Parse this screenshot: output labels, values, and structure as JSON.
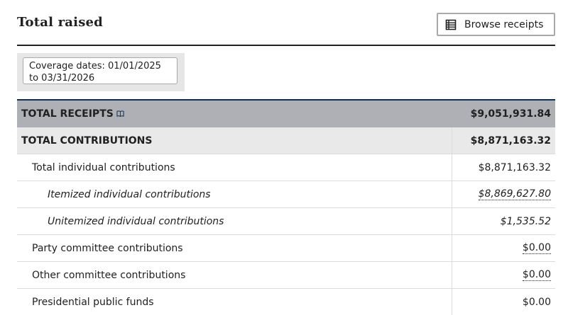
{
  "header": {
    "title": "Total raised",
    "browse_button_label": "Browse receipts"
  },
  "coverage": {
    "text": "Coverage dates: 01/01/2025 to 03/31/2026"
  },
  "table": {
    "rows": [
      {
        "label": "TOTAL RECEIPTS",
        "value": "$9,051,931.84"
      },
      {
        "label": "TOTAL CONTRIBUTIONS",
        "value": "$8,871,163.32"
      },
      {
        "label": "Total individual contributions",
        "value": "$8,871,163.32"
      },
      {
        "label": "Itemized individual contributions",
        "value": "$8,869,627.80"
      },
      {
        "label": "Unitemized individual contributions",
        "value": "$1,535.52"
      },
      {
        "label": "Party committee contributions",
        "value": "$0.00"
      },
      {
        "label": "Other committee contributions",
        "value": "$0.00"
      },
      {
        "label": "Presidential public funds",
        "value": "$0.00"
      }
    ]
  },
  "icons": {
    "browse": "table-list-icon",
    "info": "book-info-icon"
  },
  "colors": {
    "total_receipts_bg": "#aeb0b5",
    "total_contributions_bg": "#e9e9e9",
    "table_top_border": "#112e51"
  }
}
